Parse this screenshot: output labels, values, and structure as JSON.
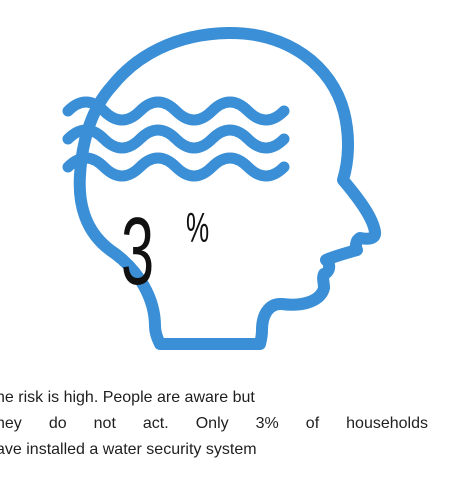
{
  "accent_color": "#3a8fd6",
  "icon": "head-profile-with-water-waves-icon",
  "stat": {
    "number": "3",
    "unit": "%"
  },
  "caption": {
    "line1": "he risk is high. People are aware but",
    "line2": "hey do not act. Only 3% of households",
    "line3": "ave installed a water security system"
  }
}
